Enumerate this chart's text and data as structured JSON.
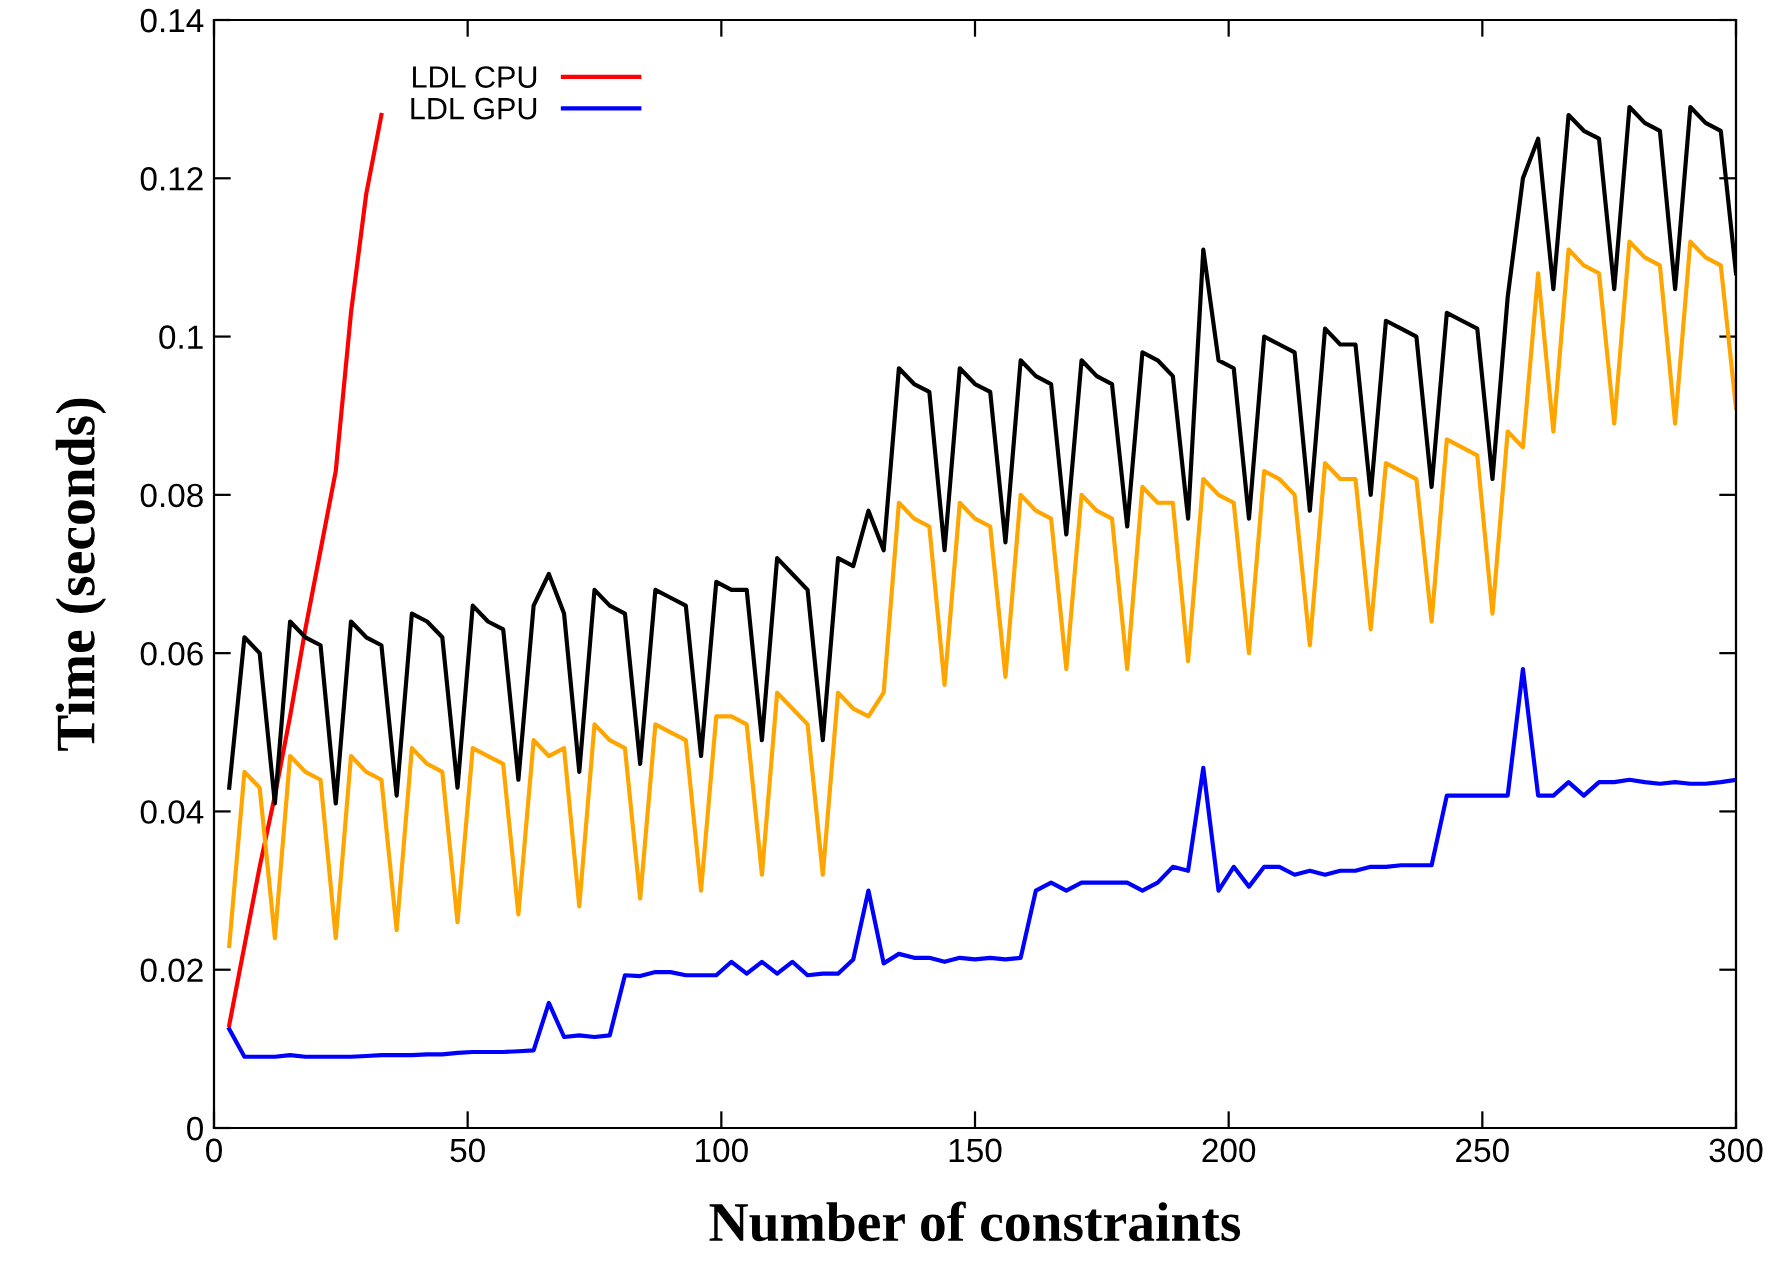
{
  "chart_data": {
    "type": "line",
    "xlabel": "Number of constraints",
    "ylabel": "Time (seconds)",
    "xlim": [
      0,
      300
    ],
    "ylim": [
      0,
      0.14
    ],
    "xticks": [
      0,
      50,
      100,
      150,
      200,
      250,
      300
    ],
    "yticks": [
      0,
      0.02,
      0.04,
      0.06,
      0.08,
      0.1,
      0.12,
      0.14
    ],
    "grid": false,
    "legend": "top left",
    "marker": "none",
    "line_style": "solid",
    "series": [
      {
        "name": "LDL CPU",
        "color": "#ff0000",
        "x": [
          3,
          6,
          9,
          12,
          15,
          18,
          21,
          24,
          27,
          30,
          33
        ],
        "values": [
          0.013,
          0.023,
          0.033,
          0.042,
          0.052,
          0.063,
          0.073,
          0.083,
          0.103,
          0.118,
          0.128
        ]
      },
      {
        "name": "LDL GPU",
        "color": "#0000ff",
        "values": [
          0.0125,
          0.009,
          0.009,
          0.009,
          0.0092,
          0.009,
          0.009,
          0.009,
          0.009,
          0.0091,
          0.0092,
          0.0092,
          0.0092,
          0.0093,
          0.0093,
          0.0095,
          0.0096,
          0.0096,
          0.0096,
          0.0097,
          0.0098,
          0.0158,
          0.0115,
          0.0117,
          0.0115,
          0.0117,
          0.0193,
          0.0192,
          0.0197,
          0.0197,
          0.0193,
          0.0193,
          0.0193,
          0.021,
          0.0195,
          0.021,
          0.0195,
          0.021,
          0.0193,
          0.0195,
          0.0195,
          0.0213,
          0.03,
          0.0208,
          0.022,
          0.0215,
          0.0215,
          0.021,
          0.0215,
          0.0213,
          0.0215,
          0.0213,
          0.0215,
          0.03,
          0.031,
          0.03,
          0.031,
          0.031,
          0.031,
          0.031,
          0.03,
          0.031,
          0.033,
          0.0325,
          0.0455,
          0.03,
          0.033,
          0.0305,
          0.033,
          0.033,
          0.032,
          0.0325,
          0.032,
          0.0325,
          0.0325,
          0.033,
          0.033,
          0.0332,
          0.0332,
          0.0332,
          0.042,
          0.042,
          0.042,
          0.042,
          0.042,
          0.058,
          0.042,
          0.042,
          0.0437,
          0.042,
          0.0437,
          0.0437,
          0.044,
          0.0437,
          0.0435,
          0.0437,
          0.0435,
          0.0435,
          0.0437,
          0.044
        ]
      },
      {
        "color": "#000000",
        "values": [
          0.043,
          0.062,
          0.06,
          0.041,
          0.064,
          0.062,
          0.061,
          0.041,
          0.064,
          0.062,
          0.061,
          0.042,
          0.065,
          0.064,
          0.062,
          0.043,
          0.066,
          0.064,
          0.063,
          0.044,
          0.066,
          0.07,
          0.065,
          0.045,
          0.068,
          0.066,
          0.065,
          0.046,
          0.068,
          0.067,
          0.066,
          0.047,
          0.069,
          0.068,
          0.068,
          0.049,
          0.072,
          0.07,
          0.068,
          0.049,
          0.072,
          0.071,
          0.078,
          0.073,
          0.096,
          0.094,
          0.093,
          0.073,
          0.096,
          0.094,
          0.093,
          0.074,
          0.097,
          0.095,
          0.094,
          0.075,
          0.097,
          0.095,
          0.094,
          0.076,
          0.098,
          0.097,
          0.095,
          0.077,
          0.111,
          0.097,
          0.096,
          0.077,
          0.1,
          0.099,
          0.098,
          0.078,
          0.101,
          0.099,
          0.099,
          0.08,
          0.102,
          0.101,
          0.1,
          0.081,
          0.103,
          0.102,
          0.101,
          0.082,
          0.105,
          0.12,
          0.125,
          0.106,
          0.128,
          0.126,
          0.125,
          0.106,
          0.129,
          0.127,
          0.126,
          0.106,
          0.129,
          0.127,
          0.126,
          0.108
        ]
      },
      {
        "color": "#ffa500",
        "values": [
          0.023,
          0.045,
          0.043,
          0.024,
          0.047,
          0.045,
          0.044,
          0.024,
          0.047,
          0.045,
          0.044,
          0.025,
          0.048,
          0.046,
          0.045,
          0.026,
          0.048,
          0.047,
          0.046,
          0.027,
          0.049,
          0.047,
          0.048,
          0.028,
          0.051,
          0.049,
          0.048,
          0.029,
          0.051,
          0.05,
          0.049,
          0.03,
          0.052,
          0.052,
          0.051,
          0.032,
          0.055,
          0.053,
          0.051,
          0.032,
          0.055,
          0.053,
          0.052,
          0.055,
          0.079,
          0.077,
          0.076,
          0.056,
          0.079,
          0.077,
          0.076,
          0.057,
          0.08,
          0.078,
          0.077,
          0.058,
          0.08,
          0.078,
          0.077,
          0.058,
          0.081,
          0.079,
          0.079,
          0.059,
          0.082,
          0.08,
          0.079,
          0.06,
          0.083,
          0.082,
          0.08,
          0.061,
          0.084,
          0.082,
          0.082,
          0.063,
          0.084,
          0.083,
          0.082,
          0.064,
          0.087,
          0.086,
          0.085,
          0.065,
          0.088,
          0.086,
          0.108,
          0.088,
          0.111,
          0.109,
          0.108,
          0.089,
          0.112,
          0.11,
          0.109,
          0.089,
          0.112,
          0.11,
          0.109,
          0.091
        ]
      }
    ],
    "x": [
      3,
      6,
      9,
      12,
      15,
      18,
      21,
      24,
      27,
      30,
      33,
      36,
      39,
      42,
      45,
      48,
      51,
      54,
      57,
      60,
      63,
      66,
      69,
      72,
      75,
      78,
      81,
      84,
      87,
      90,
      93,
      96,
      99,
      102,
      105,
      108,
      111,
      114,
      117,
      120,
      123,
      126,
      129,
      132,
      135,
      138,
      141,
      144,
      147,
      150,
      153,
      156,
      159,
      162,
      165,
      168,
      171,
      174,
      177,
      180,
      183,
      186,
      189,
      192,
      195,
      198,
      201,
      204,
      207,
      210,
      213,
      216,
      219,
      222,
      225,
      228,
      231,
      234,
      237,
      240,
      243,
      246,
      249,
      252,
      255,
      258,
      261,
      264,
      267,
      270,
      273,
      276,
      279,
      282,
      285,
      288,
      291,
      294,
      297,
      300
    ]
  }
}
